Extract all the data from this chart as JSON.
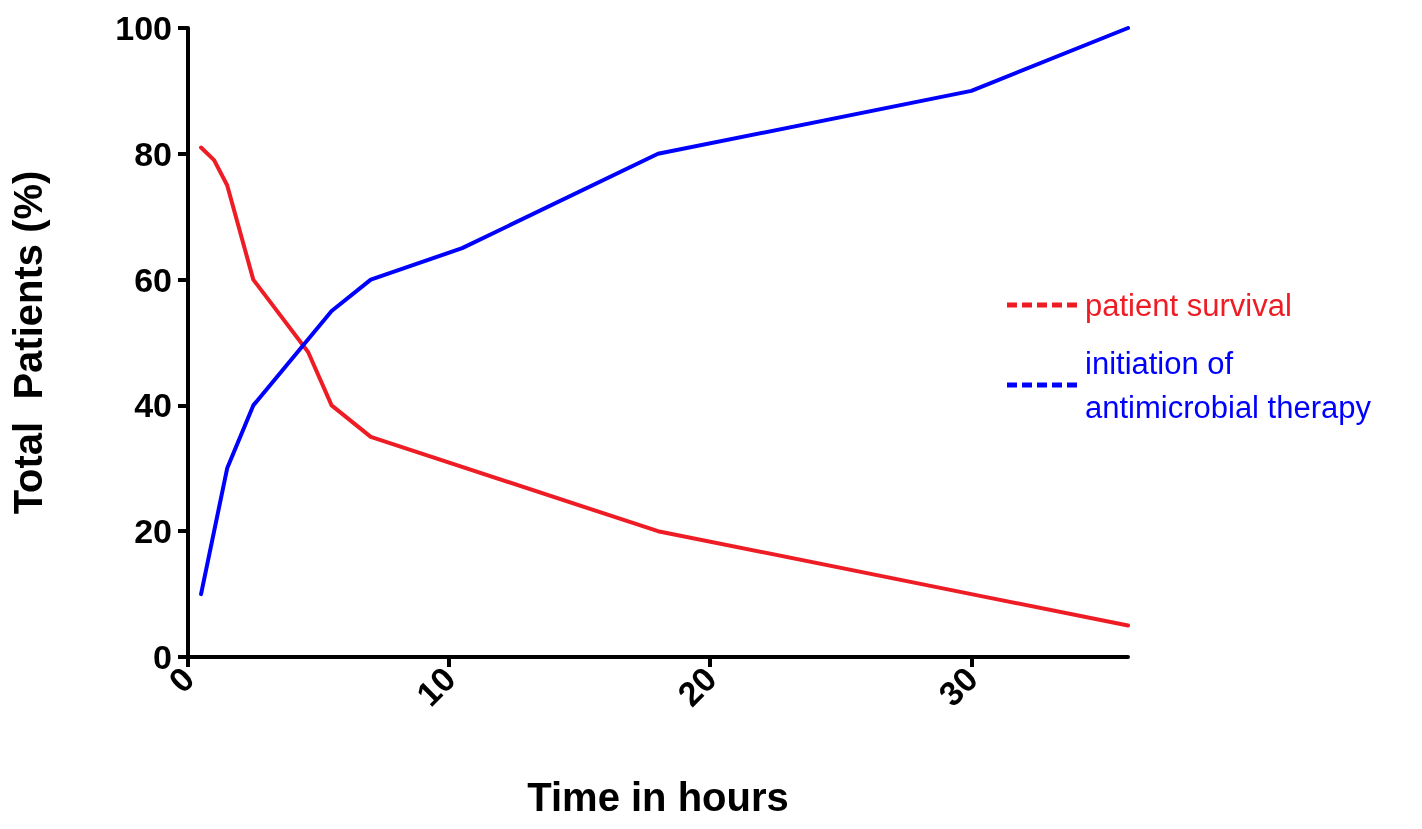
{
  "chart_data": {
    "type": "line",
    "xlabel": "Time in hours",
    "ylabel": "Total  Patients (%)",
    "xlim": [
      0,
      36
    ],
    "xticks": [
      0,
      10,
      20,
      30
    ],
    "ylim": [
      0,
      100
    ],
    "yticks": [
      0,
      20,
      40,
      60,
      80,
      100
    ],
    "grid": false,
    "legend": "right",
    "marker": "none",
    "line_style": "solid",
    "series": [
      {
        "name": "patient survival",
        "color": "#ee1c25",
        "x": [
          0.5,
          1,
          1.5,
          2.5,
          4.6,
          5.5,
          7,
          18,
          30,
          36
        ],
        "values": [
          81,
          79,
          75,
          60,
          48.5,
          40,
          35,
          20,
          10,
          5
        ]
      },
      {
        "name": "initiation of antimicrobial therapy",
        "color": "#0000ff",
        "x": [
          0.5,
          1.5,
          2.5,
          5.5,
          7,
          10.5,
          18,
          30,
          36
        ],
        "values": [
          10,
          30,
          40,
          55,
          60,
          65,
          80,
          90,
          100
        ]
      }
    ]
  }
}
